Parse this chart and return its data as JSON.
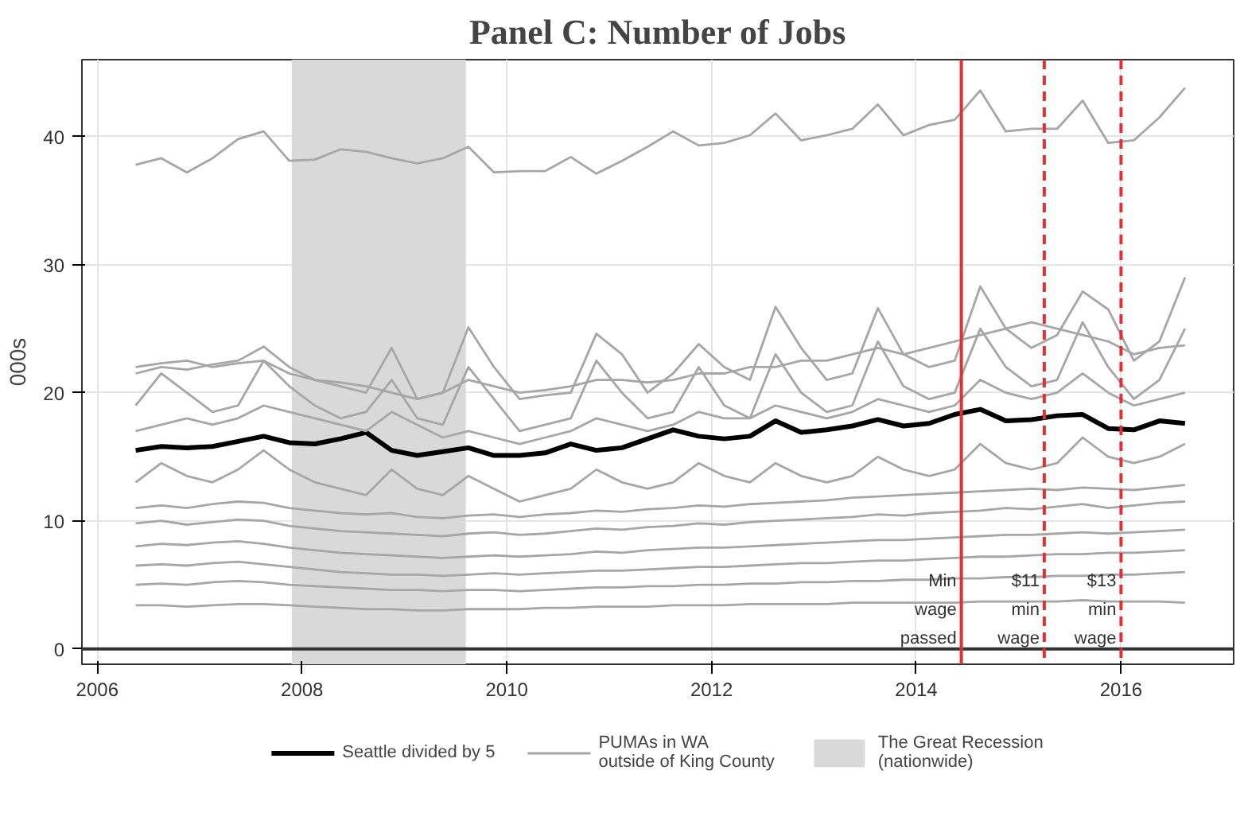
{
  "chart_data": {
    "type": "line",
    "title": "Panel C: Number of Jobs",
    "ylabel": "000s",
    "x": [
      2006.375,
      2006.625,
      2006.875,
      2007.125,
      2007.375,
      2007.625,
      2007.875,
      2008.125,
      2008.375,
      2008.625,
      2008.875,
      2009.125,
      2009.375,
      2009.625,
      2009.875,
      2010.125,
      2010.375,
      2010.625,
      2010.875,
      2011.125,
      2011.375,
      2011.625,
      2011.875,
      2012.125,
      2012.375,
      2012.625,
      2012.875,
      2013.125,
      2013.375,
      2013.625,
      2013.875,
      2014.125,
      2014.375,
      2014.625,
      2014.875,
      2015.125,
      2015.375,
      2015.625,
      2015.875,
      2016.125,
      2016.375,
      2016.625
    ],
    "series": [
      {
        "name": "Seattle divided by 5",
        "color": "#000000",
        "values": [
          15.5,
          15.8,
          15.7,
          15.8,
          16.2,
          16.6,
          16.1,
          16.0,
          16.4,
          16.9,
          15.5,
          15.1,
          15.4,
          15.7,
          15.1,
          15.1,
          15.3,
          16.0,
          15.5,
          15.7,
          16.4,
          17.1,
          16.6,
          16.4,
          16.6,
          17.8,
          16.9,
          17.1,
          17.4,
          17.9,
          17.4,
          17.6,
          18.3,
          18.7,
          17.8,
          17.9,
          18.2,
          18.3,
          17.2,
          17.1,
          17.8,
          17.6
        ]
      },
      {
        "name": "PUMAs in WA\noutside of King County",
        "color": "#a6a6a6",
        "values": [
          37.8,
          38.3,
          37.2,
          38.3,
          39.8,
          40.4,
          38.1,
          38.2,
          39.0,
          38.8,
          38.3,
          37.9,
          38.3,
          39.2,
          37.2,
          37.3,
          37.3,
          38.4,
          37.1,
          38.1,
          39.2,
          40.4,
          39.3,
          39.5,
          40.1,
          41.8,
          39.7,
          40.1,
          40.6,
          42.5,
          40.1,
          40.9,
          41.3,
          43.6,
          40.4,
          40.6,
          40.6,
          42.8,
          39.5,
          39.7,
          41.5,
          43.8
        ]
      },
      {
        "color": "#a6a6a6",
        "values": [
          21.5,
          22.0,
          21.8,
          22.2,
          22.5,
          23.6,
          22.0,
          21.0,
          20.5,
          20.0,
          23.5,
          19.5,
          20.0,
          25.1,
          22.0,
          19.5,
          19.8,
          20.0,
          24.6,
          23.0,
          20.0,
          21.5,
          23.8,
          22.0,
          21.0,
          26.7,
          23.5,
          21.0,
          21.5,
          26.6,
          23.0,
          22.0,
          22.5,
          28.3,
          25.0,
          23.5,
          24.5,
          27.9,
          26.5,
          22.5,
          24.0,
          29.0
        ]
      },
      {
        "color": "#a6a6a6",
        "values": [
          22.0,
          22.3,
          22.5,
          22.0,
          22.3,
          22.5,
          21.5,
          21.0,
          20.8,
          20.5,
          20.0,
          19.5,
          20.0,
          21.0,
          20.5,
          20.0,
          20.2,
          20.5,
          21.0,
          21.0,
          20.8,
          21.0,
          21.5,
          21.5,
          22.0,
          22.0,
          22.5,
          22.5,
          23.0,
          23.5,
          23.0,
          23.5,
          24.0,
          24.5,
          25.0,
          25.5,
          25.0,
          24.5,
          24.0,
          23.0,
          23.5,
          23.7
        ]
      },
      {
        "color": "#a6a6a6",
        "values": [
          19.0,
          21.5,
          20.0,
          18.5,
          19.0,
          22.5,
          20.5,
          19.0,
          18.0,
          18.5,
          21.0,
          18.0,
          17.5,
          22.0,
          19.5,
          17.0,
          17.5,
          18.0,
          22.5,
          20.0,
          18.0,
          18.5,
          22.0,
          19.0,
          18.0,
          23.0,
          20.0,
          18.5,
          19.0,
          24.0,
          20.5,
          19.5,
          20.0,
          25.0,
          22.0,
          20.5,
          21.0,
          25.5,
          22.0,
          19.5,
          21.0,
          25.0
        ]
      },
      {
        "color": "#a6a6a6",
        "values": [
          17.0,
          17.5,
          18.0,
          17.5,
          18.0,
          19.0,
          18.5,
          18.0,
          17.5,
          17.0,
          18.5,
          17.5,
          16.5,
          17.0,
          16.5,
          16.0,
          16.5,
          17.0,
          18.0,
          17.5,
          17.0,
          17.5,
          18.5,
          18.0,
          18.0,
          19.0,
          18.5,
          18.0,
          18.5,
          19.5,
          19.0,
          18.5,
          19.0,
          21.0,
          20.0,
          19.5,
          20.0,
          21.5,
          20.0,
          19.0,
          19.5,
          20.0
        ]
      },
      {
        "color": "#a6a6a6",
        "values": [
          13.0,
          14.5,
          13.5,
          13.0,
          14.0,
          15.5,
          14.0,
          13.0,
          12.5,
          12.0,
          14.0,
          12.5,
          12.0,
          13.5,
          12.5,
          11.5,
          12.0,
          12.5,
          14.0,
          13.0,
          12.5,
          13.0,
          14.5,
          13.5,
          13.0,
          14.5,
          13.5,
          13.0,
          13.5,
          15.0,
          14.0,
          13.5,
          14.0,
          16.0,
          14.5,
          14.0,
          14.5,
          16.5,
          15.0,
          14.5,
          15.0,
          16.0
        ]
      },
      {
        "color": "#a6a6a6",
        "values": [
          11.0,
          11.2,
          11.0,
          11.3,
          11.5,
          11.4,
          11.0,
          10.8,
          10.6,
          10.5,
          10.6,
          10.3,
          10.2,
          10.4,
          10.5,
          10.3,
          10.5,
          10.6,
          10.8,
          10.7,
          10.9,
          11.0,
          11.2,
          11.1,
          11.3,
          11.4,
          11.5,
          11.6,
          11.8,
          11.9,
          12.0,
          12.1,
          12.2,
          12.3,
          12.4,
          12.5,
          12.4,
          12.6,
          12.5,
          12.4,
          12.6,
          12.8
        ]
      },
      {
        "color": "#a6a6a6",
        "values": [
          9.8,
          10.0,
          9.7,
          9.9,
          10.1,
          10.0,
          9.6,
          9.4,
          9.2,
          9.1,
          9.0,
          8.9,
          8.8,
          9.0,
          9.1,
          8.9,
          9.0,
          9.2,
          9.4,
          9.3,
          9.5,
          9.6,
          9.8,
          9.7,
          9.9,
          10.0,
          10.1,
          10.2,
          10.3,
          10.5,
          10.4,
          10.6,
          10.7,
          10.8,
          11.0,
          10.9,
          11.1,
          11.3,
          11.0,
          11.2,
          11.4,
          11.5
        ]
      },
      {
        "color": "#a6a6a6",
        "values": [
          8.0,
          8.2,
          8.1,
          8.3,
          8.4,
          8.2,
          7.9,
          7.7,
          7.5,
          7.4,
          7.3,
          7.2,
          7.1,
          7.2,
          7.3,
          7.2,
          7.3,
          7.4,
          7.6,
          7.5,
          7.7,
          7.8,
          7.9,
          7.9,
          8.0,
          8.1,
          8.2,
          8.3,
          8.4,
          8.5,
          8.5,
          8.6,
          8.7,
          8.8,
          8.9,
          8.9,
          9.0,
          9.1,
          9.0,
          9.1,
          9.2,
          9.3
        ]
      },
      {
        "color": "#a6a6a6",
        "values": [
          6.5,
          6.6,
          6.5,
          6.7,
          6.8,
          6.6,
          6.4,
          6.2,
          6.0,
          5.9,
          5.8,
          5.8,
          5.7,
          5.8,
          5.9,
          5.8,
          5.9,
          6.0,
          6.1,
          6.1,
          6.2,
          6.3,
          6.4,
          6.4,
          6.5,
          6.6,
          6.7,
          6.7,
          6.8,
          6.9,
          6.9,
          7.0,
          7.1,
          7.2,
          7.2,
          7.3,
          7.4,
          7.4,
          7.5,
          7.5,
          7.6,
          7.7
        ]
      },
      {
        "color": "#a6a6a6",
        "values": [
          5.0,
          5.1,
          5.0,
          5.2,
          5.3,
          5.2,
          5.0,
          4.9,
          4.8,
          4.7,
          4.6,
          4.6,
          4.5,
          4.6,
          4.6,
          4.5,
          4.6,
          4.7,
          4.8,
          4.8,
          4.9,
          4.9,
          5.0,
          5.0,
          5.1,
          5.1,
          5.2,
          5.2,
          5.3,
          5.3,
          5.4,
          5.4,
          5.5,
          5.5,
          5.6,
          5.6,
          5.7,
          5.7,
          5.8,
          5.8,
          5.9,
          6.0
        ]
      },
      {
        "color": "#a6a6a6",
        "values": [
          3.4,
          3.4,
          3.3,
          3.4,
          3.5,
          3.5,
          3.4,
          3.3,
          3.2,
          3.1,
          3.1,
          3.0,
          3.0,
          3.1,
          3.1,
          3.1,
          3.2,
          3.2,
          3.3,
          3.3,
          3.3,
          3.4,
          3.4,
          3.4,
          3.5,
          3.5,
          3.5,
          3.5,
          3.6,
          3.6,
          3.6,
          3.6,
          3.6,
          3.7,
          3.7,
          3.7,
          3.7,
          3.8,
          3.7,
          3.7,
          3.7,
          3.6
        ]
      }
    ],
    "xlim": [
      2005.85,
      2017.1
    ],
    "ylim": [
      -1.2,
      46
    ],
    "xticks": [
      2006,
      2008,
      2010,
      2012,
      2014,
      2016
    ],
    "yticks": [
      0,
      10,
      20,
      30,
      40
    ],
    "bands": [
      {
        "axis": "x",
        "from": 2007.9,
        "to": 2009.6,
        "label": "The Great Recession\n(nationwide)",
        "color": "#d9d9d9"
      }
    ],
    "ref_lines": [
      {
        "axis": "y",
        "value": 0,
        "color": "#333333",
        "line_style": "solid"
      },
      {
        "axis": "x",
        "value": 2014.44,
        "label": "Min\nwage\npassed",
        "color": "#e03030",
        "line_style": "solid"
      },
      {
        "axis": "x",
        "value": 2015.25,
        "label": "$11\nmin\nwage",
        "color": "#e03030",
        "line_style": "dashed"
      },
      {
        "axis": "x",
        "value": 2016.0,
        "label": "$13\nmin\nwage",
        "color": "#e03030",
        "line_style": "dashed"
      }
    ],
    "grid": true,
    "legend": "bottom",
    "line_style": "solid",
    "marker": "none"
  }
}
